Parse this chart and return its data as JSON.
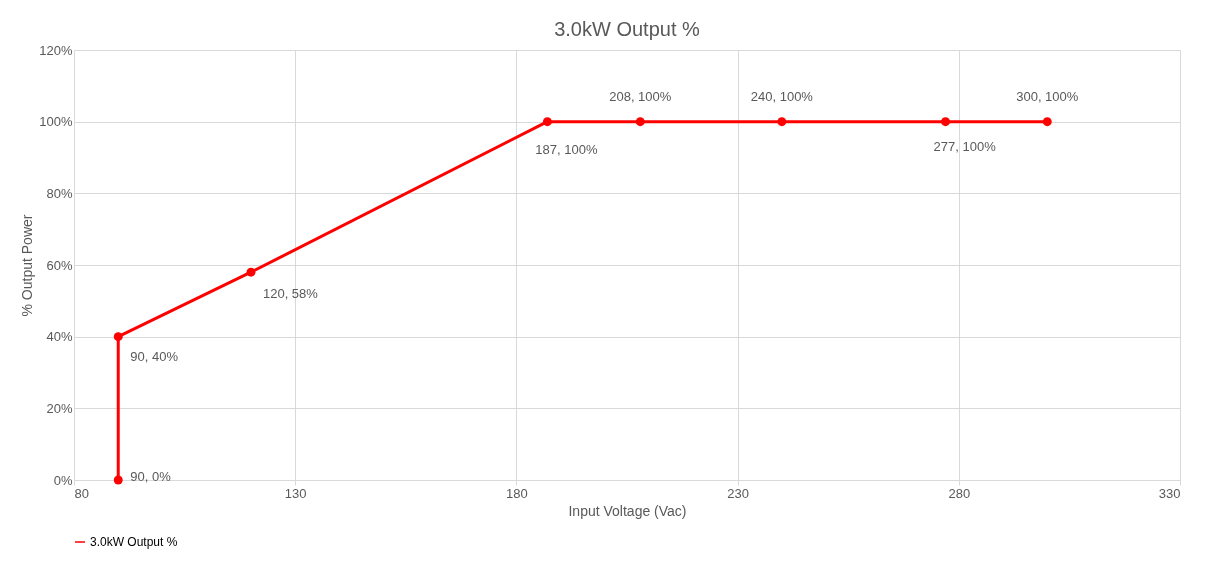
{
  "chart_data": {
    "type": "line",
    "title": "3.0kW Output %",
    "xlabel": "Input Voltage (Vac)",
    "ylabel": "% Output Power",
    "x": [
      90,
      90,
      120,
      187,
      208,
      240,
      277,
      300
    ],
    "series": [
      {
        "name": "3.0kW Output %",
        "color": "#ff0000",
        "values": [
          0,
          40,
          58,
          100,
          100,
          100,
          100,
          100
        ]
      }
    ],
    "xlim": [
      80,
      330
    ],
    "xticks": [
      80,
      130,
      180,
      230,
      280,
      330
    ],
    "ylim": [
      0,
      120
    ],
    "yticks": [
      {
        "value": 0,
        "label": "0%"
      },
      {
        "value": 20,
        "label": "20%"
      },
      {
        "value": 40,
        "label": "40%"
      },
      {
        "value": 60,
        "label": "60%"
      },
      {
        "value": 80,
        "label": "80%"
      },
      {
        "value": 100,
        "label": "100%"
      },
      {
        "value": 120,
        "label": "120%"
      }
    ],
    "grid": true,
    "legend": "bottom",
    "marker": "circle",
    "line_style": "solid",
    "annotations": [
      {
        "text": "90, 0%",
        "x": 90,
        "y": 0
      },
      {
        "text": "90, 40%",
        "x": 90,
        "y": 40
      },
      {
        "text": "120, 58%",
        "x": 120,
        "y": 58
      },
      {
        "text": "187, 100%",
        "x": 187,
        "y": 100
      },
      {
        "text": "208, 100%",
        "x": 208,
        "y": 100
      },
      {
        "text": "240, 100%",
        "x": 240,
        "y": 100
      },
      {
        "text": "277, 100%",
        "x": 277,
        "y": 100
      },
      {
        "text": "300, 100%",
        "x": 300,
        "y": 100
      }
    ]
  }
}
